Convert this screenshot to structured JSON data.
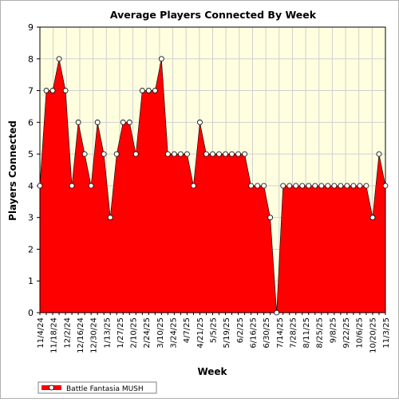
{
  "chart_data": {
    "type": "area",
    "title": "Average Players Connected By Week",
    "xlabel": "Week",
    "ylabel": "Players Connected",
    "ylim": [
      0,
      9
    ],
    "yticks": [
      0,
      1,
      2,
      3,
      4,
      5,
      6,
      7,
      8,
      9
    ],
    "grid": true,
    "legend_position": "bottom-left",
    "colors": {
      "fill": "#ff0000",
      "plot_background": "#ffffe0",
      "grid": "#d0d0d0",
      "marker_fill": "#ffffff"
    },
    "x_tick_labels": [
      "11/4/24",
      "11/18/24",
      "12/2/24",
      "12/16/24",
      "12/30/24",
      "1/13/25",
      "1/27/25",
      "2/10/25",
      "2/24/25",
      "3/10/25",
      "3/24/25",
      "4/7/25",
      "4/21/25",
      "5/5/25",
      "5/19/25",
      "6/2/25",
      "6/16/25",
      "6/30/25",
      "7/14/25",
      "7/28/25",
      "8/11/25",
      "8/25/25",
      "9/8/25",
      "9/22/25",
      "10/6/25",
      "10/20/25",
      "11/3/25"
    ],
    "series": [
      {
        "name": "Battle Fantasia MUSH",
        "values": [
          4,
          7,
          7,
          8,
          7,
          4,
          6,
          5,
          4,
          6,
          5,
          3,
          5,
          6,
          6,
          5,
          7,
          7,
          7,
          8,
          5,
          5,
          5,
          5,
          4,
          6,
          5,
          5,
          5,
          5,
          5,
          5,
          5,
          4,
          4,
          4,
          3,
          0,
          4,
          4,
          4,
          4,
          4,
          4,
          4,
          4,
          4,
          4,
          4,
          4,
          4,
          4,
          3,
          5,
          4
        ]
      }
    ]
  }
}
